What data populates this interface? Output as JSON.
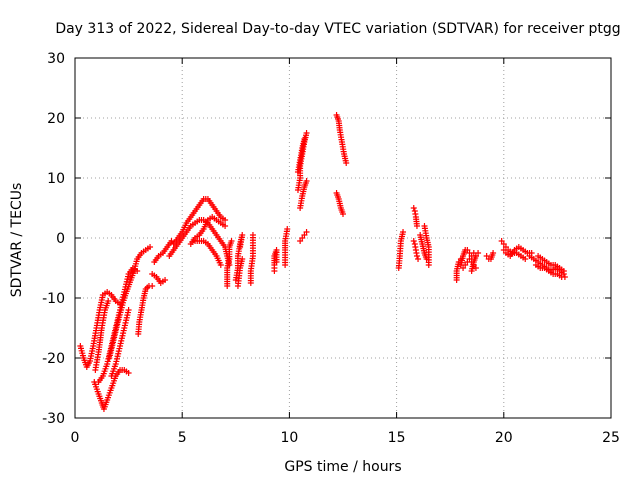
{
  "chart_data": {
    "type": "scatter",
    "title": "Day 313 of 2022, Sidereal Day-to-day VTEC variation (SDTVAR) for receiver ptgg",
    "xlabel": "GPS time / hours",
    "ylabel": "SDTVAR / TECUs",
    "xlim": [
      0,
      25
    ],
    "ylim": [
      -30,
      30
    ],
    "xticks": [
      0,
      5,
      10,
      15,
      20,
      25
    ],
    "yticks": [
      -30,
      -20,
      -10,
      0,
      10,
      20,
      30
    ],
    "grid": true,
    "marker": "plus",
    "marker_color": "#ff0000",
    "series": [
      {
        "name": "SDTVAR",
        "tracks": [
          [
            [
              0.25,
              -18
            ],
            [
              0.4,
              -20
            ],
            [
              0.55,
              -21.5
            ],
            [
              0.7,
              -20.5
            ],
            [
              0.85,
              -18
            ],
            [
              1.0,
              -15
            ],
            [
              1.15,
              -12
            ],
            [
              1.3,
              -9.5
            ],
            [
              1.5,
              -9
            ],
            [
              1.7,
              -9.5
            ],
            [
              1.9,
              -10.5
            ],
            [
              2.1,
              -11
            ]
          ],
          [
            [
              0.9,
              -24
            ],
            [
              1.1,
              -26
            ],
            [
              1.25,
              -27.5
            ],
            [
              1.35,
              -28.5
            ],
            [
              1.5,
              -27
            ],
            [
              1.7,
              -25
            ],
            [
              1.9,
              -23
            ],
            [
              2.1,
              -22
            ],
            [
              2.3,
              -22
            ],
            [
              2.5,
              -22.5
            ]
          ],
          [
            [
              0.95,
              -22
            ],
            [
              1.1,
              -19
            ],
            [
              1.25,
              -15
            ],
            [
              1.4,
              -12
            ],
            [
              1.55,
              -10.5
            ]
          ],
          [
            [
              1.1,
              -24
            ],
            [
              1.3,
              -23
            ],
            [
              1.5,
              -21
            ],
            [
              1.7,
              -18
            ],
            [
              1.9,
              -15
            ],
            [
              2.1,
              -12
            ],
            [
              2.3,
              -9
            ],
            [
              2.5,
              -6
            ],
            [
              2.7,
              -5
            ],
            [
              2.9,
              -5.5
            ]
          ],
          [
            [
              1.6,
              -20
            ],
            [
              1.8,
              -17
            ],
            [
              2.0,
              -14
            ],
            [
              2.15,
              -12
            ],
            [
              2.3,
              -10
            ],
            [
              2.45,
              -8.5
            ],
            [
              2.6,
              -7
            ],
            [
              2.75,
              -5.5
            ],
            [
              2.9,
              -3.5
            ],
            [
              3.1,
              -2.5
            ],
            [
              3.3,
              -2
            ],
            [
              3.5,
              -1.5
            ]
          ],
          [
            [
              1.7,
              -23
            ],
            [
              1.9,
              -21
            ],
            [
              2.1,
              -18
            ],
            [
              2.3,
              -15
            ],
            [
              2.5,
              -12
            ]
          ],
          [
            [
              2.95,
              -16
            ],
            [
              3.0,
              -14
            ],
            [
              3.1,
              -12
            ],
            [
              3.2,
              -10
            ],
            [
              3.3,
              -8.5
            ],
            [
              3.45,
              -8
            ],
            [
              3.6,
              -8
            ]
          ],
          [
            [
              3.6,
              -6
            ],
            [
              3.8,
              -6.5
            ],
            [
              4.0,
              -7.5
            ],
            [
              4.2,
              -7
            ]
          ],
          [
            [
              3.7,
              -4
            ],
            [
              3.9,
              -3
            ],
            [
              4.1,
              -2.5
            ],
            [
              4.3,
              -1.5
            ],
            [
              4.5,
              -0.5
            ]
          ],
          [
            [
              4.4,
              -3
            ],
            [
              4.6,
              -2
            ],
            [
              4.8,
              -1
            ],
            [
              5.0,
              0
            ],
            [
              5.2,
              1
            ],
            [
              5.4,
              2
            ],
            [
              5.6,
              2.5
            ],
            [
              5.8,
              3
            ],
            [
              6.0,
              3
            ],
            [
              6.2,
              2.5
            ],
            [
              6.4,
              1.5
            ],
            [
              6.6,
              0.5
            ],
            [
              6.8,
              -0.5
            ],
            [
              7.0,
              -1.5
            ],
            [
              7.1,
              -3
            ],
            [
              7.2,
              -4.5
            ]
          ],
          [
            [
              4.6,
              -1
            ],
            [
              4.8,
              0
            ],
            [
              5.0,
              1
            ],
            [
              5.2,
              2.5
            ],
            [
              5.4,
              3.5
            ],
            [
              5.6,
              4.5
            ],
            [
              5.8,
              5.5
            ],
            [
              6.0,
              6.5
            ],
            [
              6.2,
              6.5
            ],
            [
              6.4,
              5.5
            ],
            [
              6.6,
              4.5
            ],
            [
              6.8,
              3.5
            ],
            [
              7.0,
              3
            ]
          ],
          [
            [
              5.4,
              -1
            ],
            [
              5.6,
              0
            ],
            [
              5.8,
              0.5
            ],
            [
              6.0,
              1.5
            ],
            [
              6.2,
              3
            ],
            [
              6.4,
              3.5
            ],
            [
              6.6,
              3
            ],
            [
              6.8,
              2.5
            ],
            [
              7.0,
              2
            ]
          ],
          [
            [
              5.6,
              -0.5
            ],
            [
              5.8,
              -0.5
            ],
            [
              6.0,
              -0.5
            ],
            [
              6.2,
              -1
            ],
            [
              6.4,
              -2
            ],
            [
              6.6,
              -3
            ],
            [
              6.8,
              -4.5
            ]
          ],
          [
            [
              7.1,
              -8
            ],
            [
              7.1,
              -6.5
            ],
            [
              7.1,
              -5
            ],
            [
              7.2,
              -3.5
            ],
            [
              7.2,
              -1.5
            ],
            [
              7.3,
              -0.5
            ]
          ],
          [
            [
              7.5,
              -7
            ],
            [
              7.6,
              -5
            ],
            [
              7.6,
              -3
            ],
            [
              7.7,
              -1
            ],
            [
              7.8,
              0.5
            ],
            [
              7.7,
              -1.5
            ]
          ],
          [
            [
              7.6,
              -8
            ],
            [
              7.7,
              -5
            ],
            [
              7.8,
              -3.5
            ]
          ],
          [
            [
              8.2,
              -7.5
            ],
            [
              8.2,
              -5.5
            ],
            [
              8.3,
              -3
            ],
            [
              8.3,
              0.5
            ]
          ],
          [
            [
              9.3,
              -5.5
            ],
            [
              9.3,
              -4.5
            ],
            [
              9.3,
              -3
            ],
            [
              9.4,
              -2
            ],
            [
              9.4,
              -4
            ]
          ],
          [
            [
              9.8,
              -4.5
            ],
            [
              9.8,
              -2
            ],
            [
              9.8,
              -0.5
            ],
            [
              9.9,
              1.5
            ]
          ],
          [
            [
              10.4,
              8
            ],
            [
              10.5,
              10
            ],
            [
              10.5,
              12
            ],
            [
              10.6,
              14
            ],
            [
              10.7,
              16
            ],
            [
              10.8,
              17.5
            ]
          ],
          [
            [
              10.4,
              11
            ],
            [
              10.5,
              13
            ],
            [
              10.6,
              15
            ],
            [
              10.7,
              16.5
            ]
          ],
          [
            [
              10.5,
              5
            ],
            [
              10.6,
              7
            ],
            [
              10.7,
              8.5
            ],
            [
              10.8,
              9.5
            ]
          ],
          [
            [
              10.5,
              -0.5
            ],
            [
              10.6,
              0
            ],
            [
              10.7,
              0.5
            ],
            [
              10.8,
              1
            ]
          ],
          [
            [
              12.2,
              20.5
            ],
            [
              12.3,
              19.5
            ],
            [
              12.35,
              18
            ],
            [
              12.45,
              16
            ],
            [
              12.55,
              14
            ],
            [
              12.65,
              12.5
            ]
          ],
          [
            [
              12.2,
              7.5
            ],
            [
              12.3,
              6.5
            ],
            [
              12.4,
              5
            ],
            [
              12.5,
              4
            ]
          ],
          [
            [
              15.1,
              -5
            ],
            [
              15.15,
              -3
            ],
            [
              15.2,
              -0.5
            ],
            [
              15.3,
              1
            ]
          ],
          [
            [
              15.8,
              5
            ],
            [
              15.85,
              4.5
            ],
            [
              15.9,
              3.5
            ],
            [
              15.95,
              2
            ]
          ],
          [
            [
              15.8,
              -0.5
            ],
            [
              15.85,
              -1
            ],
            [
              15.9,
              -2
            ],
            [
              15.95,
              -3
            ],
            [
              16.0,
              -3.5
            ]
          ],
          [
            [
              16.1,
              0.5
            ],
            [
              16.2,
              -1
            ],
            [
              16.3,
              -2.5
            ],
            [
              16.4,
              -3.5
            ]
          ],
          [
            [
              16.3,
              2
            ],
            [
              16.4,
              0
            ],
            [
              16.5,
              -1.5
            ],
            [
              16.5,
              -4.5
            ]
          ],
          [
            [
              17.8,
              -7
            ],
            [
              17.8,
              -5.5
            ],
            [
              17.9,
              -4
            ],
            [
              18.0,
              -3.5
            ]
          ],
          [
            [
              18.0,
              -4.5
            ],
            [
              18.1,
              -3
            ],
            [
              18.2,
              -2
            ],
            [
              18.3,
              -2
            ],
            [
              18.4,
              -2.5
            ],
            [
              18.5,
              -3
            ],
            [
              18.6,
              -2.5
            ],
            [
              18.7,
              -3
            ]
          ],
          [
            [
              18.1,
              -5
            ],
            [
              18.2,
              -4.5
            ],
            [
              18.3,
              -4
            ],
            [
              18.4,
              -3.5
            ],
            [
              18.5,
              -4
            ],
            [
              18.6,
              -4.5
            ],
            [
              18.7,
              -5
            ]
          ],
          [
            [
              18.5,
              -5.5
            ],
            [
              18.6,
              -4
            ],
            [
              18.7,
              -3
            ],
            [
              18.8,
              -2.5
            ]
          ],
          [
            [
              19.2,
              -3
            ],
            [
              19.3,
              -3.5
            ],
            [
              19.4,
              -3.5
            ],
            [
              19.5,
              -2.5
            ]
          ],
          [
            [
              19.9,
              -0.5
            ],
            [
              20.0,
              -1
            ],
            [
              20.1,
              -1.5
            ],
            [
              20.2,
              -2
            ],
            [
              20.4,
              -2.5
            ],
            [
              20.6,
              -2.5
            ],
            [
              20.8,
              -3
            ],
            [
              21.0,
              -3.5
            ]
          ],
          [
            [
              20.0,
              -2
            ],
            [
              20.1,
              -2.5
            ],
            [
              20.3,
              -3
            ],
            [
              20.5,
              -2
            ],
            [
              20.7,
              -1.5
            ],
            [
              20.9,
              -2
            ],
            [
              21.1,
              -2.5
            ],
            [
              21.3,
              -2.5
            ]
          ],
          [
            [
              21.2,
              -3
            ],
            [
              21.4,
              -3.5
            ],
            [
              21.6,
              -4
            ],
            [
              21.8,
              -4.5
            ],
            [
              22.0,
              -5
            ],
            [
              22.2,
              -5.5
            ],
            [
              22.4,
              -5
            ],
            [
              22.6,
              -5.5
            ],
            [
              22.8,
              -6
            ]
          ],
          [
            [
              21.5,
              -4.5
            ],
            [
              21.7,
              -5
            ],
            [
              21.9,
              -5
            ],
            [
              22.1,
              -5.5
            ],
            [
              22.3,
              -6
            ],
            [
              22.5,
              -6
            ],
            [
              22.7,
              -6.5
            ],
            [
              22.85,
              -6.5
            ]
          ],
          [
            [
              21.6,
              -3
            ],
            [
              21.8,
              -3.5
            ],
            [
              22.0,
              -4
            ],
            [
              22.2,
              -4.5
            ],
            [
              22.4,
              -4.5
            ],
            [
              22.6,
              -5
            ],
            [
              22.8,
              -5.5
            ]
          ]
        ]
      }
    ]
  }
}
